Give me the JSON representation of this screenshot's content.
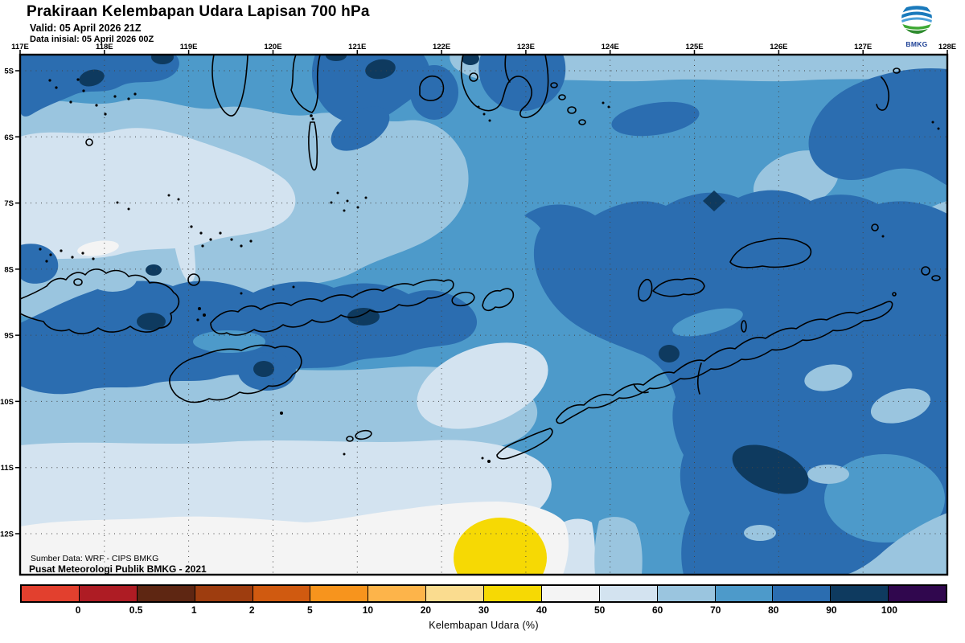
{
  "header": {
    "title": "Prakiraan Kelembapan Udara Lapisan 700 hPa",
    "valid_label": "Valid: 05 April 2026 21Z",
    "init_label": "Data inisial: 05 April 2026 00Z"
  },
  "logo": {
    "text": "BMKG"
  },
  "map": {
    "lon_labels": [
      "117E",
      "118E",
      "119E",
      "120E",
      "121E",
      "122E",
      "123E",
      "124E",
      "125E",
      "126E",
      "127E",
      "128E"
    ],
    "lat_labels": [
      "5S",
      "6S",
      "7S",
      "8S",
      "9S",
      "10S",
      "11S",
      "12S"
    ],
    "source_line1": "Sumber Data: WRF - CIPS BMKG",
    "source_line2": "Pusat Meteorologi Publik BMKG - 2021"
  },
  "legend": {
    "caption": "Kelembapan Udara (%)",
    "boundary_labels": [
      "0",
      "0.5",
      "1",
      "2",
      "5",
      "10",
      "20",
      "30",
      "40",
      "50",
      "60",
      "70",
      "80",
      "90",
      "100"
    ],
    "segment_colors": [
      "#e2402e",
      "#ae1c24",
      "#5e2612",
      "#9e3d0f",
      "#d05a10",
      "#f7941d",
      "#fdb44a",
      "#fadc8f",
      "#f6d904",
      "#f4f4f4",
      "#d3e3f0",
      "#9ac5df",
      "#4d9aca",
      "#2b6db0",
      "#0e3a5f",
      "#30074e"
    ],
    "unit": "%"
  }
}
